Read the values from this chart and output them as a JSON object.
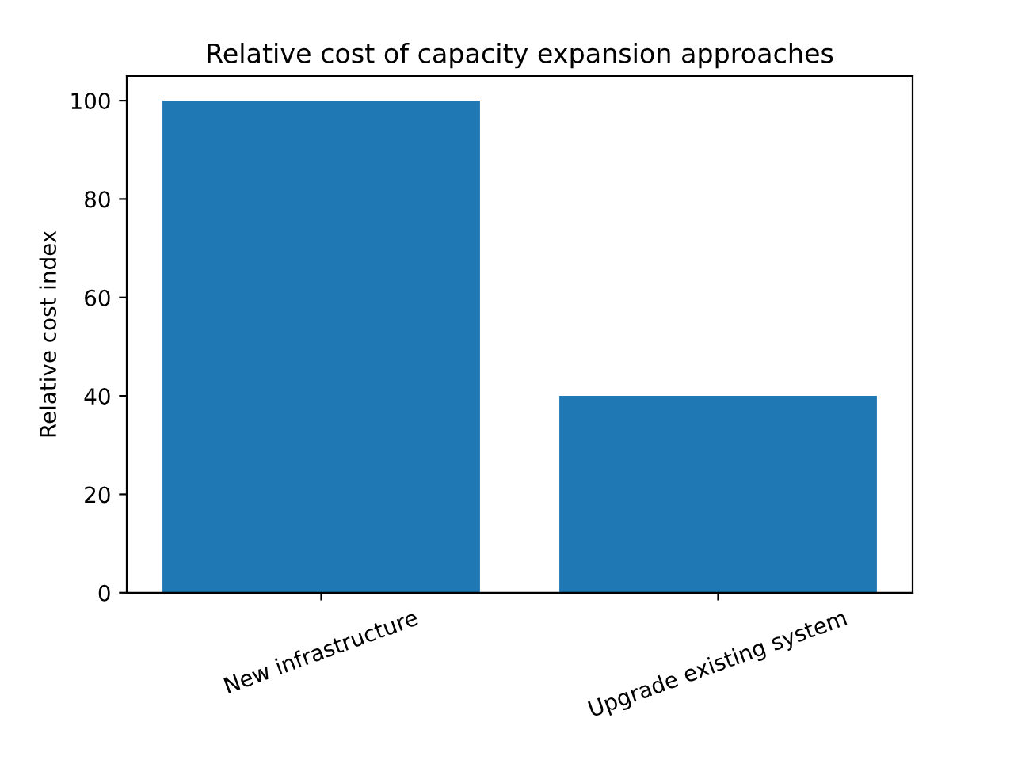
{
  "chart_data": {
    "type": "bar",
    "title": "Relative cost of capacity expansion approaches",
    "ylabel": "Relative cost index",
    "categories": [
      "New infrastructure",
      "Upgrade existing system"
    ],
    "values": [
      100,
      40
    ],
    "color": "#1f77b4",
    "ylim": [
      0,
      105
    ],
    "yticks": [
      0,
      20,
      40,
      60,
      80,
      100
    ],
    "grid": false,
    "legend": false
  }
}
